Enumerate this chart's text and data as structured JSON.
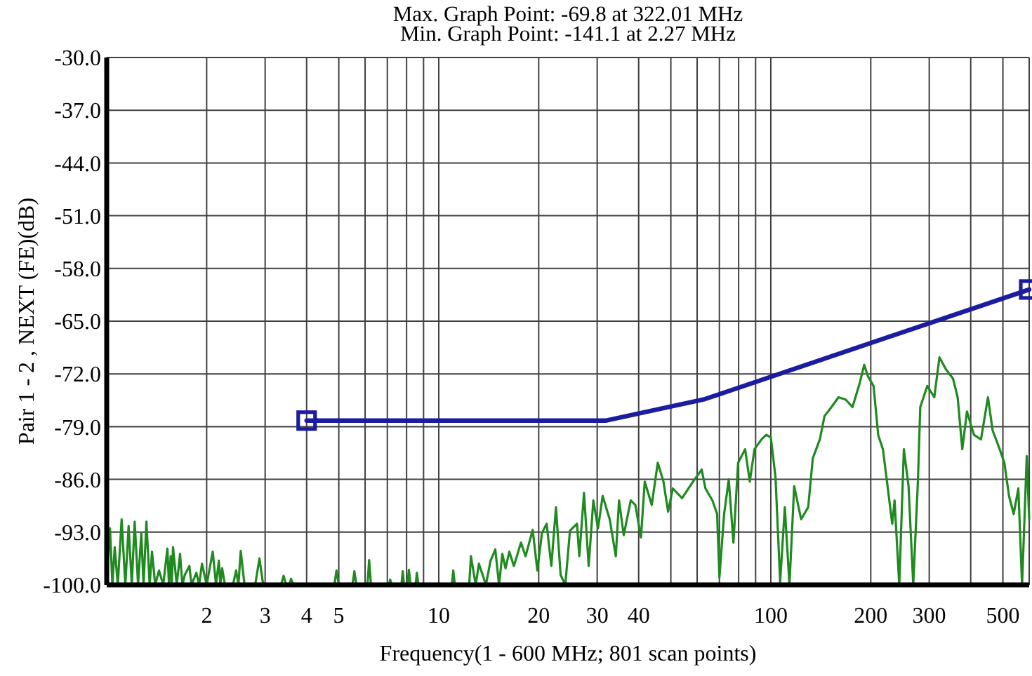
{
  "chart_data": {
    "type": "line",
    "title": "Max. Graph Point: -69.8 at 322.01 MHz",
    "subtitle": "Min. Graph Point: -141.1 at 2.27 MHz",
    "xlabel": "Frequency(1 - 600 MHz; 801 scan points)",
    "ylabel": "Pair 1 - 2 , NEXT (FE)(dB)",
    "log": "x",
    "grid": true,
    "xlim": [
      1,
      600
    ],
    "xticks": [
      2,
      3,
      4,
      5,
      {
        "value": 6,
        "label": null
      },
      {
        "value": 7,
        "label": null
      },
      {
        "value": 8,
        "label": null
      },
      {
        "value": 9,
        "label": null
      },
      10,
      20,
      30,
      40,
      {
        "value": 50,
        "label": null
      },
      {
        "value": 60,
        "label": null
      },
      {
        "value": 70,
        "label": null
      },
      {
        "value": 80,
        "label": null
      },
      {
        "value": 90,
        "label": null
      },
      100,
      200,
      300,
      {
        "value": 400,
        "label": null
      },
      500
    ],
    "ylim": [
      -100,
      -30
    ],
    "yticks": [
      {
        "value": -30,
        "label": "-30.0"
      },
      {
        "value": -37,
        "label": "-37.0"
      },
      {
        "value": -44,
        "label": "-44.0"
      },
      {
        "value": -51,
        "label": "-51.0"
      },
      {
        "value": -58,
        "label": "-58.0"
      },
      {
        "value": -65,
        "label": "-65.0"
      },
      {
        "value": -72,
        "label": "-72.0"
      },
      {
        "value": -79,
        "label": "-79.0"
      },
      {
        "value": -86,
        "label": "-86.0"
      },
      {
        "value": -93,
        "label": "-93.0"
      },
      {
        "value": -100,
        "label": "-100.0"
      }
    ],
    "series": [
      {
        "color": "#1f8a1f",
        "x": [
          1,
          1.023,
          1.04,
          1.057,
          1.08,
          1.109,
          1.138,
          1.164,
          1.19,
          1.214,
          1.243,
          1.271,
          1.291,
          1.317,
          1.347,
          1.369,
          1.4,
          1.437,
          1.48,
          1.523,
          1.54,
          1.558,
          1.57,
          1.584,
          1.625,
          1.663,
          1.69,
          1.718,
          1.774,
          1.8,
          1.862,
          1.898,
          1.936,
          2.0,
          2.086,
          2.134,
          2.176,
          2.2,
          2.226,
          2.27,
          2.4,
          2.453,
          2.493,
          2.533,
          2.6,
          2.8,
          2.884,
          2.96,
          3.35,
          3.41,
          3.47,
          3.55,
          3.59,
          3.65,
          4.85,
          4.92,
          5.0,
          5.5,
          5.57,
          5.65,
          6.1,
          6.17,
          6.25,
          7.08,
          7.14,
          7.22,
          7.72,
          7.79,
          7.86,
          8.05,
          8.13,
          8.22,
          8.52,
          8.59,
          8.68,
          10.95,
          11.06,
          11.18,
          12.35,
          12.5,
          12.92,
          13.21,
          13.87,
          14.32,
          14.8,
          15.19,
          15.54,
          15.89,
          16.31,
          16.84,
          17.68,
          18.26,
          19.18,
          19.81,
          20.46,
          21.13,
          21.83,
          22.54,
          23.28,
          24.05,
          24.84,
          26.08,
          26.5,
          27.38,
          28.28,
          29.21,
          30.17,
          31.16,
          32.72,
          34.13,
          34.91,
          36.06,
          37.86,
          39.09,
          40.64,
          41.72,
          43.79,
          45.66,
          47.5,
          49.06,
          50.66,
          54.05,
          57.67,
          61.92,
          63.55,
          66.72,
          68.91,
          70.03,
          72.34,
          74.71,
          77.17,
          79.71,
          83.68,
          86.43,
          89.29,
          93.73,
          96.83,
          100,
          103.3,
          106.7,
          110.2,
          113.8,
          117.6,
          123.4,
          129.6,
          133.8,
          140.5,
          145.1,
          152.3,
          159.9,
          167.9,
          176.2,
          185,
          191.1,
          196.1,
          203.9,
          210.6,
          217.6,
          224.7,
          232.1,
          235.9,
          243.7,
          251.6,
          259.9,
          268.5,
          277.3,
          281.9,
          295.9,
          310.7,
          322.01,
          336.9,
          353.7,
          365.3,
          377.3,
          389.7,
          409.1,
          429.5,
          450.8,
          465.6,
          489,
          505.1,
          521.7,
          538.8,
          556.5,
          571.1,
          589.9,
          600
        ],
        "values": [
          -99.3,
          -92.5,
          -100,
          -95.0,
          -100,
          -91.3,
          -100,
          -92.2,
          -100,
          -91.6,
          -100,
          -93.1,
          -100,
          -91.6,
          -100,
          -95.6,
          -100,
          -98.1,
          -100,
          -95.2,
          -100,
          -96.2,
          -100,
          -95.0,
          -100,
          -95.9,
          -100,
          -98.7,
          -97.5,
          -100,
          -98.4,
          -100,
          -97.2,
          -100,
          -95.6,
          -100,
          -96.8,
          -100,
          -97.8,
          -100,
          -100,
          -98.1,
          -100,
          -95.5,
          -100,
          -100,
          -96.5,
          -100,
          -100,
          -98.8,
          -100,
          -100,
          -99.2,
          -100,
          -100,
          -98.1,
          -100,
          -100,
          -98.2,
          -100,
          -100,
          -96.7,
          -100,
          -100,
          -99.3,
          -100,
          -100,
          -98.2,
          -100,
          -100,
          -98.0,
          -100,
          -100,
          -98.4,
          -100,
          -100,
          -98.1,
          -100,
          -100,
          -96.2,
          -100,
          -97.2,
          -100,
          -96.8,
          -95.3,
          -100,
          -95.9,
          -97.8,
          -95.6,
          -97.5,
          -94.4,
          -96.2,
          -92.7,
          -98.1,
          -93.1,
          -91.9,
          -97.5,
          -89.7,
          -98.7,
          -100,
          -92.8,
          -91.9,
          -96.2,
          -87.8,
          -97.5,
          -88.8,
          -92.5,
          -88.2,
          -91.3,
          -96.2,
          -88.8,
          -93.4,
          -88.8,
          -89.4,
          -93.7,
          -86.3,
          -89.4,
          -83.8,
          -86.3,
          -90.3,
          -87.2,
          -88.5,
          -86.6,
          -84.7,
          -87.2,
          -88.8,
          -90.6,
          -99.0,
          -90.6,
          -86.0,
          -94.4,
          -83.8,
          -82.0,
          -86.3,
          -82.0,
          -80.7,
          -80.1,
          -80.4,
          -85.7,
          -99.6,
          -89.7,
          -100,
          -86.9,
          -91.3,
          -89.7,
          -83.2,
          -80.7,
          -77.6,
          -76.4,
          -75.1,
          -75.4,
          -76.4,
          -73.3,
          -70.8,
          -72.3,
          -73.6,
          -80.1,
          -82.0,
          -86.9,
          -91.9,
          -88.8,
          -100,
          -82.0,
          -86.9,
          -100,
          -86.3,
          -76.4,
          -73.6,
          -75.1,
          -69.8,
          -71.4,
          -72.6,
          -75.1,
          -82.0,
          -77.0,
          -80.1,
          -80.7,
          -75.1,
          -79.5,
          -82.0,
          -83.8,
          -88.2,
          -90.6,
          -87.2,
          -100,
          -82.9,
          -91.3
        ]
      },
      {
        "color": "#1c1ca0",
        "x": [
          4,
          31.8,
          62.7,
          600
        ],
        "values": [
          -78.2,
          -78.2,
          -75.4,
          -60.8
        ]
      },
      {
        "type": "scatter",
        "color": "#1c1ca0",
        "marker": "square",
        "x": [
          4,
          600
        ],
        "values": [
          -78.2,
          -60.8
        ]
      }
    ]
  }
}
